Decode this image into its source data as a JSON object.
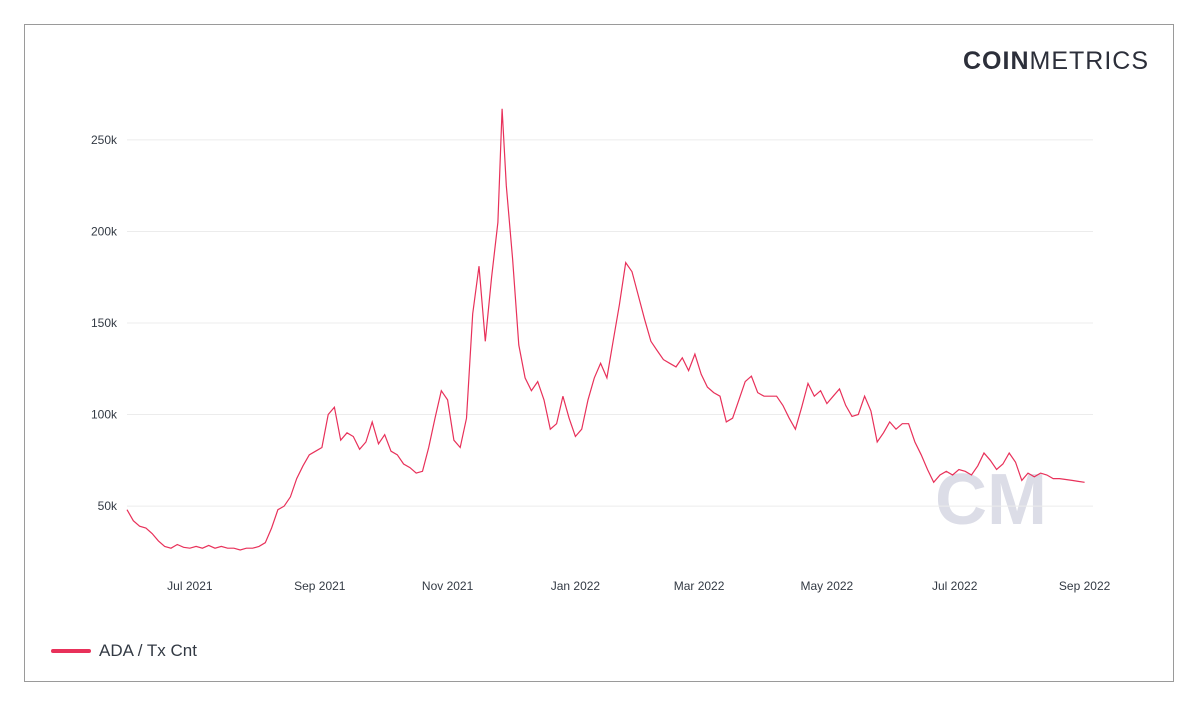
{
  "brand": {
    "bold": "COIN",
    "light": "METRICS"
  },
  "colors": {
    "series": "#e8315a",
    "grid": "#ececec",
    "watermark": "#dcdde7"
  },
  "chart_data": {
    "type": "line",
    "title": "",
    "xlabel": "",
    "ylabel": "",
    "ylim": [
      20000,
      280000
    ],
    "xlim": [
      "2021-06-01",
      "2022-09-05"
    ],
    "y_ticks": [
      50000,
      100000,
      150000,
      200000,
      250000
    ],
    "y_tick_labels": [
      "50k",
      "100k",
      "150k",
      "200k",
      "250k"
    ],
    "x_ticks": [
      "2021-07-01",
      "2021-09-01",
      "2021-11-01",
      "2022-01-01",
      "2022-03-01",
      "2022-05-01",
      "2022-07-01",
      "2022-09-01"
    ],
    "x_tick_labels": [
      "Jul 2021",
      "Sep 2021",
      "Nov 2021",
      "Jan 2022",
      "Mar 2022",
      "May 2022",
      "Jul 2022",
      "Sep 2022"
    ],
    "grid": true,
    "legend_position": "bottom-left",
    "series": [
      {
        "name": "ADA / Tx Cnt",
        "points": [
          [
            "2021-06-01",
            48000
          ],
          [
            "2021-06-04",
            42000
          ],
          [
            "2021-06-07",
            39000
          ],
          [
            "2021-06-10",
            38000
          ],
          [
            "2021-06-13",
            35000
          ],
          [
            "2021-06-16",
            31000
          ],
          [
            "2021-06-19",
            28000
          ],
          [
            "2021-06-22",
            27000
          ],
          [
            "2021-06-25",
            29000
          ],
          [
            "2021-06-28",
            27500
          ],
          [
            "2021-07-01",
            27000
          ],
          [
            "2021-07-04",
            28000
          ],
          [
            "2021-07-07",
            27000
          ],
          [
            "2021-07-10",
            28500
          ],
          [
            "2021-07-13",
            27000
          ],
          [
            "2021-07-16",
            28000
          ],
          [
            "2021-07-19",
            27000
          ],
          [
            "2021-07-22",
            27000
          ],
          [
            "2021-07-25",
            26000
          ],
          [
            "2021-07-28",
            27000
          ],
          [
            "2021-07-31",
            27000
          ],
          [
            "2021-08-03",
            28000
          ],
          [
            "2021-08-06",
            30000
          ],
          [
            "2021-08-09",
            38000
          ],
          [
            "2021-08-12",
            48000
          ],
          [
            "2021-08-15",
            50000
          ],
          [
            "2021-08-18",
            55000
          ],
          [
            "2021-08-21",
            65000
          ],
          [
            "2021-08-24",
            72000
          ],
          [
            "2021-08-27",
            78000
          ],
          [
            "2021-08-30",
            80000
          ],
          [
            "2021-09-02",
            82000
          ],
          [
            "2021-09-05",
            100000
          ],
          [
            "2021-09-08",
            104000
          ],
          [
            "2021-09-11",
            86000
          ],
          [
            "2021-09-14",
            90000
          ],
          [
            "2021-09-17",
            88000
          ],
          [
            "2021-09-20",
            81000
          ],
          [
            "2021-09-23",
            85000
          ],
          [
            "2021-09-26",
            96000
          ],
          [
            "2021-09-29",
            84000
          ],
          [
            "2021-10-02",
            89000
          ],
          [
            "2021-10-05",
            80000
          ],
          [
            "2021-10-08",
            78000
          ],
          [
            "2021-10-11",
            73000
          ],
          [
            "2021-10-14",
            71000
          ],
          [
            "2021-10-17",
            68000
          ],
          [
            "2021-10-20",
            69000
          ],
          [
            "2021-10-23",
            82000
          ],
          [
            "2021-10-26",
            98000
          ],
          [
            "2021-10-29",
            113000
          ],
          [
            "2021-11-01",
            108000
          ],
          [
            "2021-11-04",
            86000
          ],
          [
            "2021-11-07",
            82000
          ],
          [
            "2021-11-10",
            98000
          ],
          [
            "2021-11-13",
            155000
          ],
          [
            "2021-11-16",
            181000
          ],
          [
            "2021-11-19",
            140000
          ],
          [
            "2021-11-22",
            175000
          ],
          [
            "2021-11-25",
            205000
          ],
          [
            "2021-11-27",
            267000
          ],
          [
            "2021-11-29",
            225000
          ],
          [
            "2021-12-02",
            185000
          ],
          [
            "2021-12-05",
            138000
          ],
          [
            "2021-12-08",
            120000
          ],
          [
            "2021-12-11",
            113000
          ],
          [
            "2021-12-14",
            118000
          ],
          [
            "2021-12-17",
            108000
          ],
          [
            "2021-12-20",
            92000
          ],
          [
            "2021-12-23",
            95000
          ],
          [
            "2021-12-26",
            110000
          ],
          [
            "2021-12-29",
            98000
          ],
          [
            "2022-01-01",
            88000
          ],
          [
            "2022-01-04",
            92000
          ],
          [
            "2022-01-07",
            108000
          ],
          [
            "2022-01-10",
            120000
          ],
          [
            "2022-01-13",
            128000
          ],
          [
            "2022-01-16",
            120000
          ],
          [
            "2022-01-19",
            140000
          ],
          [
            "2022-01-22",
            160000
          ],
          [
            "2022-01-25",
            183000
          ],
          [
            "2022-01-28",
            178000
          ],
          [
            "2022-01-31",
            165000
          ],
          [
            "2022-02-03",
            152000
          ],
          [
            "2022-02-06",
            140000
          ],
          [
            "2022-02-09",
            135000
          ],
          [
            "2022-02-12",
            130000
          ],
          [
            "2022-02-15",
            128000
          ],
          [
            "2022-02-18",
            126000
          ],
          [
            "2022-02-21",
            131000
          ],
          [
            "2022-02-24",
            124000
          ],
          [
            "2022-02-27",
            133000
          ],
          [
            "2022-03-02",
            122000
          ],
          [
            "2022-03-05",
            115000
          ],
          [
            "2022-03-08",
            112000
          ],
          [
            "2022-03-11",
            110000
          ],
          [
            "2022-03-14",
            96000
          ],
          [
            "2022-03-17",
            98000
          ],
          [
            "2022-03-20",
            108000
          ],
          [
            "2022-03-23",
            118000
          ],
          [
            "2022-03-26",
            121000
          ],
          [
            "2022-03-29",
            112000
          ],
          [
            "2022-04-01",
            110000
          ],
          [
            "2022-04-04",
            110000
          ],
          [
            "2022-04-07",
            110000
          ],
          [
            "2022-04-10",
            105000
          ],
          [
            "2022-04-13",
            98000
          ],
          [
            "2022-04-16",
            92000
          ],
          [
            "2022-04-19",
            104000
          ],
          [
            "2022-04-22",
            117000
          ],
          [
            "2022-04-25",
            110000
          ],
          [
            "2022-04-28",
            113000
          ],
          [
            "2022-05-01",
            106000
          ],
          [
            "2022-05-04",
            110000
          ],
          [
            "2022-05-07",
            114000
          ],
          [
            "2022-05-10",
            105000
          ],
          [
            "2022-05-13",
            99000
          ],
          [
            "2022-05-16",
            100000
          ],
          [
            "2022-05-19",
            110000
          ],
          [
            "2022-05-22",
            102000
          ],
          [
            "2022-05-25",
            85000
          ],
          [
            "2022-05-28",
            90000
          ],
          [
            "2022-05-31",
            96000
          ],
          [
            "2022-06-03",
            92000
          ],
          [
            "2022-06-06",
            95000
          ],
          [
            "2022-06-09",
            95000
          ],
          [
            "2022-06-12",
            85000
          ],
          [
            "2022-06-15",
            78000
          ],
          [
            "2022-06-18",
            70000
          ],
          [
            "2022-06-21",
            63000
          ],
          [
            "2022-06-24",
            67000
          ],
          [
            "2022-06-27",
            69000
          ],
          [
            "2022-06-30",
            67000
          ],
          [
            "2022-07-03",
            70000
          ],
          [
            "2022-07-06",
            69000
          ],
          [
            "2022-07-09",
            67000
          ],
          [
            "2022-07-12",
            72000
          ],
          [
            "2022-07-15",
            79000
          ],
          [
            "2022-07-18",
            75000
          ],
          [
            "2022-07-21",
            70000
          ],
          [
            "2022-07-24",
            73000
          ],
          [
            "2022-07-27",
            79000
          ],
          [
            "2022-07-30",
            74000
          ],
          [
            "2022-08-02",
            64000
          ],
          [
            "2022-08-05",
            68000
          ],
          [
            "2022-08-08",
            66000
          ],
          [
            "2022-08-11",
            68000
          ],
          [
            "2022-08-14",
            67000
          ],
          [
            "2022-08-17",
            65000
          ],
          [
            "2022-08-20",
            65000
          ],
          [
            "2022-08-23",
            64500
          ],
          [
            "2022-08-26",
            64000
          ],
          [
            "2022-08-29",
            63500
          ],
          [
            "2022-09-01",
            63000
          ]
        ]
      }
    ]
  },
  "legend": {
    "label": "ADA / Tx Cnt"
  }
}
